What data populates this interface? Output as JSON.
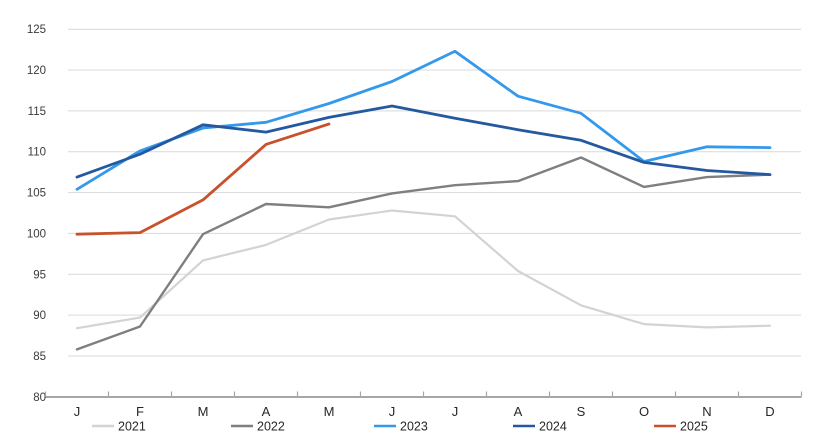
{
  "chart_data": {
    "type": "line",
    "title": "",
    "xlabel": "",
    "ylabel": "",
    "categories": [
      "J",
      "F",
      "M",
      "A",
      "M",
      "J",
      "J",
      "A",
      "S",
      "O",
      "N",
      "D"
    ],
    "series": [
      {
        "name": "2021",
        "color": "#d3d3d3",
        "values": [
          88.4,
          89.7,
          96.7,
          98.6,
          101.7,
          102.8,
          102.1,
          95.4,
          91.2,
          88.9,
          88.5,
          88.7
        ]
      },
      {
        "name": "2022",
        "color": "#7f7f7f",
        "values": [
          85.8,
          88.6,
          99.9,
          103.6,
          103.2,
          104.9,
          105.9,
          106.4,
          109.3,
          105.7,
          106.9,
          107.2
        ]
      },
      {
        "name": "2023",
        "color": "#3498eb",
        "values": [
          105.4,
          110.1,
          112.9,
          113.6,
          115.9,
          118.6,
          122.3,
          116.8,
          114.7,
          108.8,
          110.6,
          110.5
        ]
      },
      {
        "name": "2024",
        "color": "#24599f",
        "values": [
          106.9,
          109.7,
          113.3,
          112.4,
          114.2,
          115.6,
          114.1,
          112.7,
          111.4,
          108.7,
          107.7,
          107.2
        ]
      },
      {
        "name": "2025",
        "color": "#c9512c",
        "values": [
          99.9,
          100.1,
          104.1,
          110.9,
          113.4,
          null,
          null,
          null,
          null,
          null,
          null,
          null
        ]
      }
    ],
    "ylim": [
      80,
      125
    ],
    "ytick_step": 5,
    "ytick_labels": [
      "80",
      "85",
      "90",
      "95",
      "100",
      "105",
      "110",
      "115",
      "120",
      "125"
    ],
    "grid": "horizontal",
    "gridline_color": "#d9d9d9",
    "axis_color": "#a6a6a6",
    "label_color": "#3b3b3b",
    "legend_position": "bottom",
    "legend_labels": [
      "2021",
      "2022",
      "2023",
      "2024",
      "2025"
    ]
  }
}
